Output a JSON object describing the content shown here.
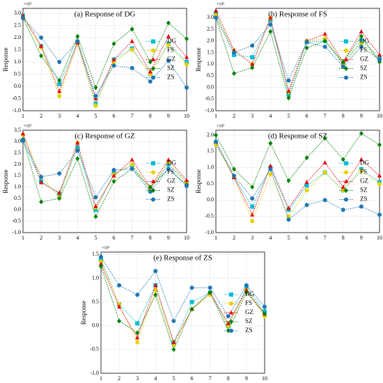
{
  "chart_data": [
    {
      "type": "line",
      "title": "(a) Response of DG",
      "y_label": "Response",
      "y_multiplier": "×10⁵",
      "legend": "center right",
      "grid": true,
      "x": [
        1,
        2,
        3,
        4,
        5,
        6,
        7,
        8,
        9,
        10
      ],
      "xlim": [
        1,
        10
      ],
      "xticks": [
        1,
        2,
        3,
        4,
        5,
        6,
        7,
        8,
        9,
        10
      ],
      "ylim": [
        -1,
        3.2
      ],
      "yticks": [
        {
          "value": -1,
          "label": "-1.0"
        },
        -0.5,
        {
          "value": 0,
          "label": "0.0"
        },
        0.5,
        {
          "value": 1,
          "label": "1.0"
        },
        1.5,
        {
          "value": 2,
          "label": "2.0"
        },
        2.5,
        {
          "value": 3,
          "label": "3.0"
        }
      ],
      "series": [
        {
          "name": "DG",
          "color": "#00bcd4",
          "marker": "square",
          "values": [
            2.9,
            1.65,
            0.1,
            1.8,
            -0.7,
            1.1,
            1.55,
            0.5,
            1.75,
            1.0
          ]
        },
        {
          "name": "FS",
          "color": "#e6d200",
          "marker": "circle",
          "values": [
            2.85,
            1.6,
            -0.4,
            1.75,
            -0.8,
            1.0,
            1.5,
            0.5,
            1.7,
            0.9
          ]
        },
        {
          "name": "GZ",
          "color": "#e8000b",
          "marker": "triangle",
          "values": [
            2.9,
            1.65,
            -0.2,
            1.8,
            -0.5,
            1.1,
            1.85,
            0.6,
            2.05,
            1.2
          ]
        },
        {
          "name": "SZ",
          "color": "#008000",
          "marker": "diamond",
          "values": [
            2.8,
            1.25,
            0.25,
            2.05,
            -0.05,
            1.75,
            2.35,
            1.0,
            2.6,
            1.95
          ]
        },
        {
          "name": "ZS",
          "color": "#1f77b4",
          "marker": "circle",
          "values": [
            2.8,
            2.0,
            1.0,
            1.85,
            -0.4,
            0.85,
            0.75,
            0.2,
            1.05,
            -0.05
          ]
        }
      ]
    },
    {
      "type": "line",
      "title": "(b) Response of FS",
      "y_label": "Response",
      "y_multiplier": "×10⁵",
      "legend": "center right",
      "grid": true,
      "x": [
        1,
        2,
        3,
        4,
        5,
        6,
        7,
        8,
        9,
        10
      ],
      "xlim": [
        1,
        10
      ],
      "xticks": [
        1,
        2,
        3,
        4,
        5,
        6,
        7,
        8,
        9,
        10
      ],
      "ylim": [
        -1,
        3.4
      ],
      "yticks": [
        {
          "value": -1,
          "label": "-1.0"
        },
        -0.5,
        {
          "value": 0,
          "label": "0.0"
        },
        0.5,
        {
          "value": 1,
          "label": "1.0"
        },
        1.5,
        {
          "value": 2,
          "label": "2.0"
        },
        2.5,
        {
          "value": 3,
          "label": "3.0"
        }
      ],
      "series": [
        {
          "name": "DG",
          "color": "#00bcd4",
          "marker": "square",
          "values": [
            3.2,
            1.4,
            1.3,
            2.9,
            -0.3,
            1.95,
            2.0,
            1.0,
            2.0,
            1.3
          ]
        },
        {
          "name": "FS",
          "color": "#e6d200",
          "marker": "circle",
          "values": [
            3.1,
            1.6,
            1.0,
            3.0,
            -0.2,
            2.0,
            2.1,
            1.0,
            1.9,
            1.2
          ]
        },
        {
          "name": "GZ",
          "color": "#e8000b",
          "marker": "triangle",
          "values": [
            3.3,
            1.6,
            1.0,
            3.0,
            -0.15,
            2.0,
            2.3,
            1.1,
            2.4,
            1.4
          ]
        },
        {
          "name": "SZ",
          "color": "#008000",
          "marker": "diamond",
          "values": [
            3.0,
            0.6,
            0.85,
            2.4,
            -0.45,
            1.7,
            2.0,
            1.1,
            2.2,
            1.1
          ]
        },
        {
          "name": "ZS",
          "color": "#1f77b4",
          "marker": "circle",
          "values": [
            3.0,
            1.5,
            1.8,
            2.7,
            0.3,
            1.95,
            1.75,
            0.9,
            1.75,
            1.2
          ]
        }
      ]
    },
    {
      "type": "line",
      "title": "(c) Response of GZ",
      "y_label": "Response",
      "y_multiplier": "×10⁵",
      "legend": "center right",
      "grid": true,
      "x": [
        1,
        2,
        3,
        4,
        5,
        6,
        7,
        8,
        9,
        10
      ],
      "xlim": [
        1,
        10
      ],
      "xticks": [
        1,
        2,
        3,
        4,
        5,
        6,
        7,
        8,
        9,
        10
      ],
      "ylim": [
        -1,
        3.5
      ],
      "yticks": [
        {
          "value": -1,
          "label": "-1.0"
        },
        -0.5,
        {
          "value": 0,
          "label": "0.0"
        },
        0.5,
        {
          "value": 1,
          "label": "1.0"
        },
        1.5,
        {
          "value": 2,
          "label": "2.0"
        },
        2.5,
        {
          "value": 3,
          "label": "3.0"
        },
        3.5
      ],
      "series": [
        {
          "name": "DG",
          "color": "#00bcd4",
          "marker": "square",
          "values": [
            3.05,
            1.25,
            0.7,
            2.75,
            0.0,
            1.6,
            1.95,
            0.9,
            2.0,
            1.2
          ]
        },
        {
          "name": "FS",
          "color": "#e6d200",
          "marker": "circle",
          "values": [
            3.3,
            1.45,
            0.55,
            2.95,
            0.1,
            1.55,
            2.0,
            0.9,
            2.1,
            1.2
          ]
        },
        {
          "name": "GZ",
          "color": "#e8000b",
          "marker": "triangle",
          "values": [
            3.35,
            1.2,
            0.75,
            2.95,
            0.15,
            1.5,
            2.2,
            1.0,
            2.2,
            1.3
          ]
        },
        {
          "name": "SZ",
          "color": "#008000",
          "marker": "diamond",
          "values": [
            3.1,
            0.35,
            0.5,
            2.25,
            -0.3,
            1.25,
            1.8,
            1.0,
            1.8,
            1.1
          ]
        },
        {
          "name": "ZS",
          "color": "#1f77b4",
          "marker": "circle",
          "values": [
            3.05,
            1.45,
            1.6,
            2.6,
            0.55,
            1.75,
            1.8,
            0.8,
            1.8,
            1.05
          ]
        }
      ]
    },
    {
      "type": "line",
      "title": "(d) Response of SZ",
      "y_label": "Response",
      "y_multiplier": "×10⁵",
      "legend": "center right",
      "grid": true,
      "x": [
        1,
        2,
        3,
        4,
        5,
        6,
        7,
        8,
        9,
        10
      ],
      "xlim": [
        1,
        10
      ],
      "xticks": [
        1,
        2,
        3,
        4,
        5,
        6,
        7,
        8,
        9,
        10
      ],
      "ylim": [
        -1,
        2.15
      ],
      "yticks": [
        {
          "value": -1,
          "label": "-1.0"
        },
        -0.5,
        {
          "value": 0,
          "label": "0.0"
        },
        0.5,
        {
          "value": 1,
          "label": "1.0"
        },
        1.5,
        {
          "value": 2,
          "label": "2.0"
        }
      ],
      "series": [
        {
          "name": "DG",
          "color": "#00bcd4",
          "marker": "square",
          "values": [
            1.75,
            0.7,
            -0.2,
            1.0,
            -0.3,
            0.45,
            0.85,
            0.3,
            0.95,
            0.55
          ]
        },
        {
          "name": "FS",
          "color": "#e6d200",
          "marker": "circle",
          "values": [
            1.7,
            0.7,
            -0.65,
            0.8,
            -0.5,
            0.3,
            0.85,
            0.3,
            0.9,
            0.5
          ]
        },
        {
          "name": "GZ",
          "color": "#e8000b",
          "marker": "triangle",
          "values": [
            1.8,
            0.7,
            -0.45,
            1.05,
            -0.25,
            0.55,
            1.15,
            0.4,
            1.25,
            0.75
          ]
        },
        {
          "name": "SZ",
          "color": "#008000",
          "marker": "diamond",
          "values": [
            2.0,
            0.95,
            0.4,
            1.75,
            0.6,
            1.3,
            1.9,
            1.25,
            2.05,
            1.7
          ]
        },
        {
          "name": "ZS",
          "color": "#1f77b4",
          "marker": "circle",
          "values": [
            1.8,
            0.75,
            0.05,
            0.95,
            -0.6,
            -0.15,
            0.0,
            -0.3,
            -0.2,
            -0.45
          ]
        }
      ]
    },
    {
      "type": "line",
      "title": "(e) Response of ZS",
      "y_label": "Response",
      "y_multiplier": "×10⁵",
      "legend": "center right",
      "grid": true,
      "x": [
        1,
        2,
        3,
        4,
        5,
        6,
        7,
        8,
        9,
        10
      ],
      "xlim": [
        1,
        10
      ],
      "xticks": [
        1,
        2,
        3,
        4,
        5,
        6,
        7,
        8,
        9,
        10
      ],
      "ylim": [
        -1,
        1.55
      ],
      "yticks": [
        {
          "value": -1,
          "label": "-1.0"
        },
        -0.5,
        {
          "value": 0,
          "label": "0.0"
        },
        0.5,
        {
          "value": 1,
          "label": "1.0"
        },
        1.5
      ],
      "series": [
        {
          "name": "DG",
          "color": "#00bcd4",
          "marker": "square",
          "values": [
            1.4,
            0.45,
            0.05,
            0.85,
            -0.35,
            0.5,
            0.7,
            0.0,
            0.8,
            0.3
          ]
        },
        {
          "name": "FS",
          "color": "#e6d200",
          "marker": "circle",
          "values": [
            1.35,
            0.45,
            -0.35,
            0.75,
            -0.4,
            0.35,
            0.65,
            0.0,
            0.75,
            0.2
          ]
        },
        {
          "name": "GZ",
          "color": "#e8000b",
          "marker": "triangle",
          "values": [
            1.3,
            0.4,
            -0.25,
            0.85,
            -0.35,
            0.35,
            0.7,
            0.05,
            0.75,
            0.25
          ]
        },
        {
          "name": "SZ",
          "color": "#008000",
          "marker": "diamond",
          "values": [
            1.25,
            0.1,
            -0.15,
            0.65,
            -0.5,
            0.35,
            0.7,
            -0.1,
            0.7,
            0.25
          ]
        },
        {
          "name": "ZS",
          "color": "#1f77b4",
          "marker": "circle",
          "values": [
            1.45,
            0.85,
            0.65,
            1.15,
            0.1,
            0.8,
            0.8,
            0.2,
            0.85,
            0.4
          ]
        }
      ]
    }
  ]
}
